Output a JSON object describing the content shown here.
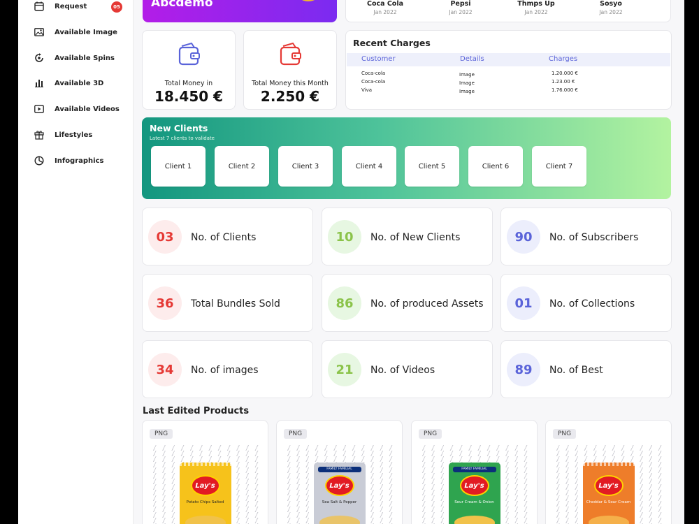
{
  "sidebar": {
    "items": [
      {
        "label": "Request",
        "icon": "calendar-icon",
        "badge": "05"
      },
      {
        "label": "Available Image",
        "icon": "image-icon"
      },
      {
        "label": "Available Spins",
        "icon": "spin-icon"
      },
      {
        "label": "Available 3D",
        "icon": "bar-chart-icon"
      },
      {
        "label": "Available Videos",
        "icon": "video-icon"
      },
      {
        "label": "Lifestyles",
        "icon": "gift-icon"
      },
      {
        "label": "Infographics",
        "icon": "pie-chart-icon"
      }
    ]
  },
  "banner": {
    "title": "Abcdemo"
  },
  "brands": [
    {
      "name": "Coca Cola",
      "date": "Jan 2022"
    },
    {
      "name": "Pepsi",
      "date": "Jan 2022"
    },
    {
      "name": "Thmps Up",
      "date": "Jan 2022"
    },
    {
      "name": "Sosyo",
      "date": "Jan 2022"
    }
  ],
  "money": {
    "total_label": "Total Money in",
    "total_value": "18.450 €",
    "month_label": "Total Money this Month",
    "month_value": "2.250 €"
  },
  "recent_charges": {
    "title": "Recent Charges",
    "columns": [
      "Customer",
      "Details",
      "Charges"
    ],
    "rows": [
      {
        "customer": "Coca-cola",
        "details": "Image",
        "charge": "1.20.000 €"
      },
      {
        "customer": "Coca-cola",
        "details": "Image",
        "charge": "1.23.00 €"
      },
      {
        "customer": "Viva",
        "details": "Image",
        "charge": "1.76.000 €"
      }
    ]
  },
  "new_clients": {
    "title": "New Clients",
    "subtitle": "Latest 7 clients to validate",
    "clients": [
      "Client 1",
      "Client 2",
      "Client 3",
      "Client 4",
      "Client 5",
      "Client 6",
      "Client 7"
    ]
  },
  "stats": [
    {
      "value": "03",
      "label": "No. of Clients",
      "tone": "red"
    },
    {
      "value": "10",
      "label": "No. of  New Clients",
      "tone": "green"
    },
    {
      "value": "90",
      "label": "No. of Subscribers",
      "tone": "blue"
    },
    {
      "value": "36",
      "label": "Total Bundles Sold",
      "tone": "red"
    },
    {
      "value": "86",
      "label": "No. of produced Assets",
      "tone": "green"
    },
    {
      "value": "01",
      "label": "No. of Collections",
      "tone": "blue"
    },
    {
      "value": "34",
      "label": "No. of images",
      "tone": "red"
    },
    {
      "value": "21",
      "label": "No. of Videos",
      "tone": "green"
    },
    {
      "value": "89",
      "label": "No. of Best",
      "tone": "blue"
    }
  ],
  "last_edited": {
    "title": "Last Edited Products",
    "products": [
      {
        "tag": "PNG",
        "brand": "Lay's",
        "flavor": "Potato Chips Salted",
        "color": "#f6c21b",
        "family": ""
      },
      {
        "tag": "PNG",
        "brand": "Lay's",
        "flavor": "Sea Salt & Pepper",
        "color": "#c9ccd6",
        "family": "FAMILY FAMILIAL"
      },
      {
        "tag": "PNG",
        "brand": "Lay's",
        "flavor": "Sour Cream & Onion",
        "color": "#2fa44f",
        "family": "FAMILY FAMILIAL"
      },
      {
        "tag": "PNG",
        "brand": "Lay's",
        "flavor": "Cheddar & Sour Cream",
        "color": "#ee7d2a",
        "family": ""
      }
    ]
  },
  "colors": {
    "accent_purple": "#8b2cf0",
    "accent_green": "#13967f",
    "badge_red": "#e53935"
  }
}
